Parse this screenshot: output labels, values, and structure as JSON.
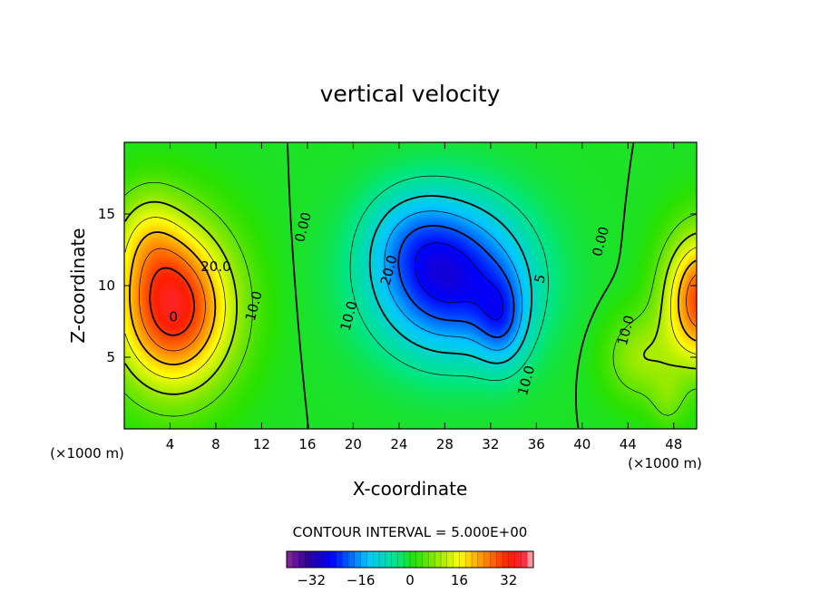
{
  "chart_data": {
    "type": "heatmap",
    "title": "vertical velocity",
    "xlabel": "X-coordinate",
    "ylabel": "Z-coordinate",
    "x_unit": "(×1000 m)",
    "y_unit": "(×1000 m)",
    "xlim": [
      0,
      50
    ],
    "ylim": [
      0,
      20
    ],
    "x_ticks": [
      4,
      8,
      12,
      16,
      20,
      24,
      28,
      32,
      36,
      40,
      44,
      48
    ],
    "y_ticks": [
      5,
      10,
      15
    ],
    "contour_interval_text": "CONTOUR INTERVAL = 5.000E+00",
    "contour_interval": 5,
    "colorbar": {
      "range": [
        -40,
        40
      ],
      "ticks": [
        -32,
        -16,
        0,
        16,
        32
      ],
      "tick_labels": [
        "−32",
        "−16",
        "0",
        "16",
        "32"
      ]
    },
    "contour_labels": [
      {
        "text": "20.0",
        "x": 8.0,
        "z": 11.0
      },
      {
        "text": "10.0",
        "x": 11.7,
        "z": 8.5
      },
      {
        "text": "0.00",
        "x": 16.0,
        "z": 14.0
      },
      {
        "text": "10.0",
        "x": 20.0,
        "z": 7.8
      },
      {
        "text": "20.0",
        "x": 23.5,
        "z": 11.0
      },
      {
        "text": "0",
        "x": 4.3,
        "z": 7.5
      },
      {
        "text": "10.0",
        "x": 35.5,
        "z": 3.3
      },
      {
        "text": "0.00",
        "x": 42.0,
        "z": 13.0
      },
      {
        "text": "10.0",
        "x": 44.2,
        "z": 6.8
      },
      {
        "text": "5",
        "x": 36.7,
        "z": 10.4
      }
    ],
    "features": [
      {
        "kind": "updraft",
        "x": 4.3,
        "z": 8.5,
        "max": 34
      },
      {
        "kind": "downdraft",
        "x": 32.5,
        "z": 8.0,
        "min": -34
      },
      {
        "kind": "updraft",
        "x": 50.0,
        "z": 9.0,
        "max": 30
      }
    ]
  }
}
